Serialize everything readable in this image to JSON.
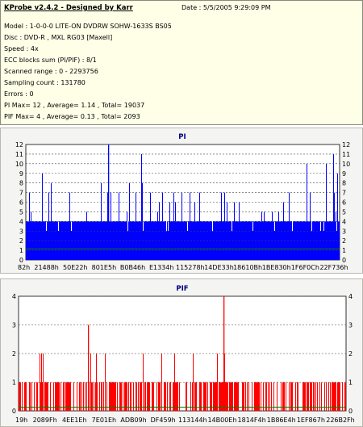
{
  "report": {
    "title": "KProbe v2.4.2 - Designed by Karr",
    "date": "Date : 5/5/2005 9:29:09 PM",
    "lines": [
      "Model : 1-0-0-0 LITE-ON DVDRW SOHW-1633S BS05",
      "Disc : DVD-R , MXL RG03 [Maxell]",
      "Speed : 4x",
      "ECC blocks sum (PI/PIF) : 8/1",
      "Scanned range : 0 - 2293756",
      "Sampling count : 131780",
      "Errors : 0",
      "PI Max= 12 , Average= 1.14 , Total= 19037",
      "PIF Max= 4 , Average= 0.13 , Total= 2093"
    ]
  },
  "chart_data": [
    {
      "type": "bar",
      "title": "PI",
      "ylim": [
        0,
        12
      ],
      "yticks": [
        0,
        1,
        2,
        3,
        4,
        5,
        6,
        7,
        8,
        9,
        10,
        11,
        12
      ],
      "xtick_labels": [
        "82h",
        "21488h",
        "50E22h",
        "801E5h",
        "B0B46h",
        "E1334h",
        "115278h",
        "14DE33h",
        "18610Bh",
        "1BE830h",
        "1F6F0Ch",
        "22F736h"
      ],
      "grid": true,
      "colors": {
        "bars": "#0000ff",
        "average": "#008000",
        "bg": "#ffffff"
      },
      "baseline": 4,
      "max": 12,
      "average": 1.14
    },
    {
      "type": "bar",
      "title": "PIF",
      "ylim": [
        0,
        4
      ],
      "yticks": [
        0,
        1,
        2,
        3,
        4
      ],
      "xtick_labels": [
        "19h",
        "2089Fh",
        "4EE1Eh",
        "7E01Eh",
        "ADB09h",
        "DF459h",
        "113144h",
        "14B00Eh",
        "1814F4h",
        "1B86E4h",
        "1EF867h",
        "226B2Fh"
      ],
      "grid": true,
      "colors": {
        "bars": "#ff0000",
        "average": "#008000",
        "bg": "#ffffff"
      },
      "baseline": 1,
      "max": 4,
      "average": 0.13
    }
  ]
}
